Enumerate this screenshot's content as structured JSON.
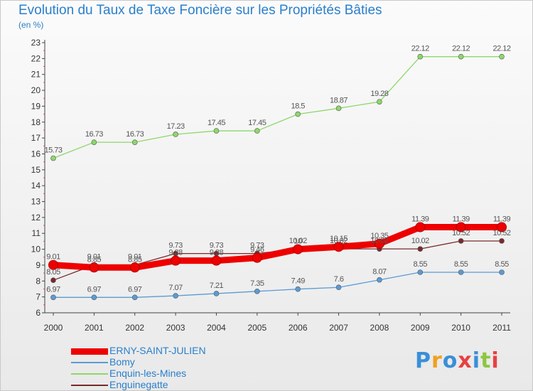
{
  "title": "Evolution du Taux de Taxe Foncière sur les Propriétés Bâties",
  "subtitle": "(en %)",
  "logo": {
    "letters": [
      "P",
      "r",
      "o",
      "x",
      "i",
      "t",
      "i"
    ],
    "colors": [
      "#3a8fd8",
      "#f0a020",
      "#3a8fd8",
      "#e84040",
      "#3a8fd8",
      "#8dc63f",
      "#e84040"
    ]
  },
  "chart_data": {
    "type": "line",
    "x": [
      "2000",
      "2001",
      "2002",
      "2003",
      "2004",
      "2005",
      "2006",
      "2007",
      "2008",
      "2009",
      "2010",
      "2011"
    ],
    "ylim": [
      6,
      23
    ],
    "yticks": [
      "6",
      "7",
      "8",
      "9",
      "10",
      "11",
      "12",
      "13",
      "14",
      "15",
      "16",
      "17",
      "18",
      "19",
      "20",
      "21",
      "22",
      "23"
    ],
    "grid": false,
    "legend_position": "bottom-left",
    "series": [
      {
        "name": "ERNY-SAINT-JULIEN",
        "color": "#ee0000",
        "values": [
          9.01,
          8.85,
          8.85,
          9.28,
          9.28,
          9.46,
          10.0,
          10.15,
          10.35,
          11.39,
          11.39,
          11.39
        ],
        "labels": [
          "9.01",
          "8.85",
          "8.85",
          "9.28",
          "9.28",
          "9.46",
          "10",
          "10.15",
          "10.35",
          "11.39",
          "11.39",
          "11.39"
        ]
      },
      {
        "name": "Bomy",
        "color": "#5b9bd5",
        "values": [
          6.97,
          6.97,
          6.97,
          7.07,
          7.21,
          7.35,
          7.49,
          7.6,
          8.07,
          8.55,
          8.55,
          8.55
        ],
        "labels": [
          "6.97",
          "6.97",
          "6.97",
          "7.07",
          "7.21",
          "7.35",
          "7.49",
          "7.6",
          "8.07",
          "8.55",
          "8.55",
          "8.55"
        ]
      },
      {
        "name": "Enquin-les-Mines",
        "color": "#8dd86a",
        "values": [
          15.73,
          16.73,
          16.73,
          17.23,
          17.45,
          17.45,
          18.5,
          18.87,
          19.28,
          22.12,
          22.12,
          22.12
        ],
        "labels": [
          "15.73",
          "16.73",
          "16.73",
          "17.23",
          "17.45",
          "17.45",
          "18.5",
          "18.87",
          "19.28",
          "22.12",
          "22.12",
          "22.12"
        ]
      },
      {
        "name": "Enguinegatte",
        "color": "#7a2a2a",
        "values": [
          8.05,
          9.01,
          9.01,
          9.73,
          9.73,
          9.73,
          10.02,
          10.02,
          10.02,
          10.02,
          10.52,
          10.52
        ],
        "labels": [
          "8.05",
          "9.01",
          "9.01",
          "9.73",
          "9.73",
          "9.73",
          "10.02",
          "10.02",
          "10.02",
          "10.02",
          "10.52",
          "10.52"
        ]
      }
    ]
  }
}
